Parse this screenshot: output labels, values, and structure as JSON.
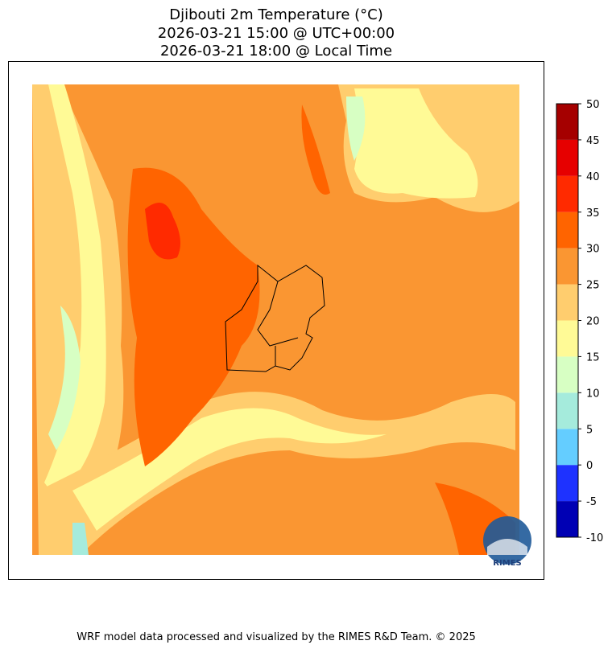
{
  "title": [
    "Djibouti 2m Temperature (°C)",
    "2026-03-21 15:00 @ UTC+00:00",
    "2026-03-21 18:00 @ Local Time"
  ],
  "colorbar": {
    "ticks": [
      -10,
      -5,
      0,
      5,
      10,
      15,
      20,
      25,
      30,
      35,
      40,
      45,
      50
    ],
    "colors": [
      "#0000b4",
      "#1e32ff",
      "#64cdff",
      "#a5ebdc",
      "#d7ffc3",
      "#fffa96",
      "#ffcd6e",
      "#fa9632",
      "#ff6400",
      "#ff2a00",
      "#e60000",
      "#a50000"
    ]
  },
  "logo_text": "RIMES",
  "footer": "WRF model data processed and visualized by the RIMES R&D Team. © 2025"
}
